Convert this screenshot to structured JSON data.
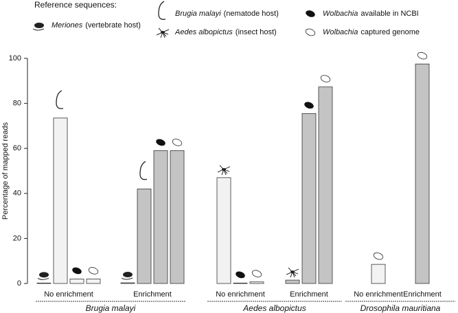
{
  "chart_data": {
    "type": "bar",
    "legend_title": "Reference sequences:",
    "ylabel": "Percentage of mapped reads",
    "ylim": [
      0,
      100
    ],
    "yticks": [
      0,
      20,
      40,
      60,
      80,
      100
    ],
    "groups": [
      {
        "name": "Brugia malayi",
        "categories": [
          "No enrichment",
          "Enrichment"
        ]
      },
      {
        "name": "Aedes albopictus",
        "categories": [
          "No enrichment",
          "Enrichment"
        ]
      },
      {
        "name": "Drosophila mauritiana",
        "categories": [
          "No enrichment",
          "Enrichment"
        ]
      }
    ],
    "bar_colors": [
      "#f2f2f2",
      "#c4c4c4"
    ],
    "series": [
      {
        "name": "Meriones",
        "description": "(vertebrate host)",
        "values": [
          0.2,
          0.3,
          null,
          null,
          null,
          null
        ]
      },
      {
        "name": "Brugia malayi",
        "description": "(nematode host)",
        "values": [
          73.5,
          42,
          null,
          null,
          null,
          null
        ]
      },
      {
        "name": "Aedes albopictus",
        "description": "(insect host)",
        "values": [
          null,
          null,
          47,
          1.5,
          null,
          null
        ]
      },
      {
        "name": "Wolbachia",
        "description": "available in NCBI",
        "values": [
          2,
          59,
          0.2,
          75.5,
          null,
          null
        ]
      },
      {
        "name": "Wolbachia",
        "description": "captured genome",
        "values": [
          2,
          59,
          0.7,
          87.3,
          8.5,
          97.5
        ]
      }
    ]
  }
}
